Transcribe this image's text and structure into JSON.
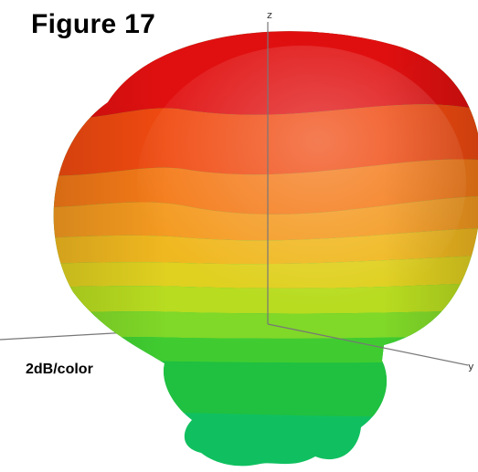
{
  "figure": {
    "title": "Figure 17",
    "scale_note": "2dB/color",
    "axes": {
      "z_label": "z",
      "y_label": "y"
    },
    "color_scale": [
      "#e01010",
      "#f04a10",
      "#f47a18",
      "#f49a20",
      "#f0b820",
      "#e0d020",
      "#b8dc20",
      "#80d828",
      "#40cc30",
      "#20c040",
      "#10c060"
    ]
  }
}
